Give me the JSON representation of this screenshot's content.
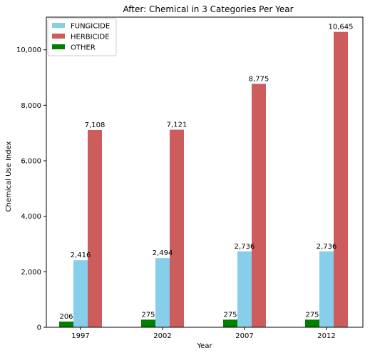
{
  "chart_data": {
    "type": "bar",
    "title": "After: Chemical in 3 Categories Per Year",
    "xlabel": "Year",
    "ylabel": "Chemical Use Index",
    "categories": [
      "1997",
      "2002",
      "2007",
      "2012"
    ],
    "series": [
      {
        "name": "OTHER",
        "values": [
          206,
          275,
          275,
          275
        ],
        "labels": [
          "206",
          "275",
          "275",
          "275"
        ],
        "color": "#008000"
      },
      {
        "name": "FUNGICIDE",
        "values": [
          2416,
          2494,
          2736,
          2736
        ],
        "labels": [
          "2,416",
          "2,494",
          "2,736",
          "2,736"
        ],
        "color": "#87CEEB"
      },
      {
        "name": "HERBICIDE",
        "values": [
          7108,
          7121,
          8775,
          10645
        ],
        "labels": [
          "7,108",
          "7,121",
          "8,775",
          "10,645"
        ],
        "color": "#CD5C5C"
      }
    ],
    "legend_order": [
      "FUNGICIDE",
      "HERBICIDE",
      "OTHER"
    ],
    "yticks": [
      0,
      2000,
      4000,
      6000,
      8000,
      10000
    ],
    "ytick_labels": [
      "0",
      "2,000",
      "4,000",
      "6,000",
      "8,000",
      "10,000"
    ],
    "ylim": [
      0,
      11177
    ],
    "grid": false,
    "legend_position": "top-left"
  }
}
